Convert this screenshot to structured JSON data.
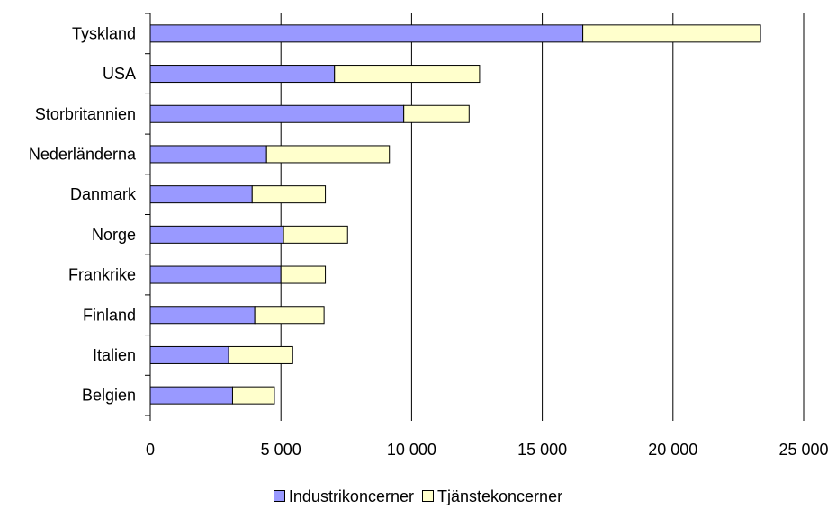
{
  "chart_data": {
    "type": "bar",
    "orientation": "horizontal",
    "stacked": true,
    "categories": [
      "Tyskland",
      "USA",
      "Storbritannien",
      "Nederländerna",
      "Danmark",
      "Norge",
      "Frankrike",
      "Finland",
      "Italien",
      "Belgien"
    ],
    "series": [
      {
        "name": "Industrikoncerner",
        "color": "#9999ff",
        "values": [
          16550,
          7050,
          9700,
          4450,
          3900,
          5100,
          5000,
          4000,
          3000,
          3150
        ]
      },
      {
        "name": "Tjänstekoncerner",
        "color": "#ffffcc",
        "values": [
          6800,
          5550,
          2500,
          4700,
          2800,
          2450,
          1700,
          2650,
          2450,
          1600
        ]
      }
    ],
    "xlim": [
      0,
      25000
    ],
    "xticks": [
      0,
      5000,
      10000,
      15000,
      20000,
      25000
    ],
    "xtick_labels": [
      "0",
      "5 000",
      "10 000",
      "15 000",
      "20 000",
      "25 000"
    ],
    "grid": true,
    "legend_position": "bottom"
  }
}
